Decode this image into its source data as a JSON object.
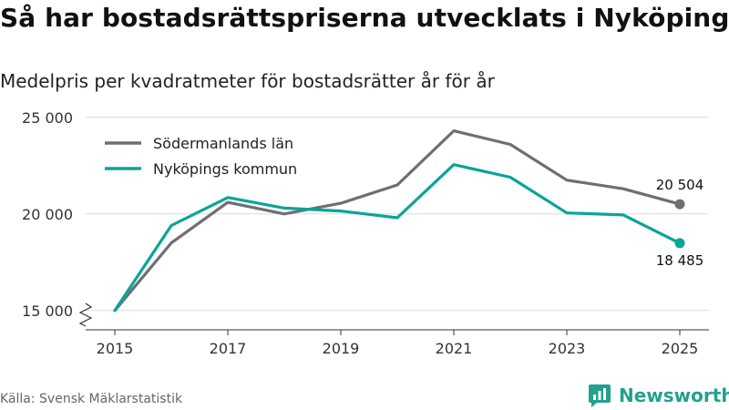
{
  "title": "Så har bostadsrättspriserna utvecklats i Nyköping",
  "subtitle": "Medelpris per kvadratmeter för bostadsrätter år för år",
  "source": "Källa: Svensk Mäklarstatistik",
  "brand": "Newsworthy",
  "colors": {
    "brand": "#23a08f",
    "series_lan": "#6e6e73",
    "series_kommun": "#0aa596"
  },
  "chart_data": {
    "type": "line",
    "x": [
      2015,
      2016,
      2017,
      2018,
      2019,
      2020,
      2021,
      2022,
      2023,
      2024,
      2025
    ],
    "series": [
      {
        "name": "Södermanlands län",
        "color": "#6e6e73",
        "values": [
          15000,
          18500,
          20600,
          20000,
          20550,
          21500,
          24300,
          23600,
          21750,
          21300,
          20504
        ]
      },
      {
        "name": "Nyköpings kommun",
        "color": "#0aa596",
        "values": [
          15000,
          19400,
          20850,
          20300,
          20150,
          19800,
          22550,
          21900,
          20050,
          19950,
          18485
        ]
      }
    ],
    "ylim": [
      14000,
      26500
    ],
    "yticks": [
      15000,
      20000,
      25000
    ],
    "ytick_labels": [
      "15 000",
      "20 000",
      "25 000"
    ],
    "xticks": [
      2015,
      2017,
      2019,
      2021,
      2023,
      2025
    ],
    "xtick_labels": [
      "2015",
      "2017",
      "2019",
      "2021",
      "2023",
      "2025"
    ],
    "end_labels": [
      "20 504",
      "18 485"
    ],
    "legend_position": "top-left",
    "grid": true
  }
}
